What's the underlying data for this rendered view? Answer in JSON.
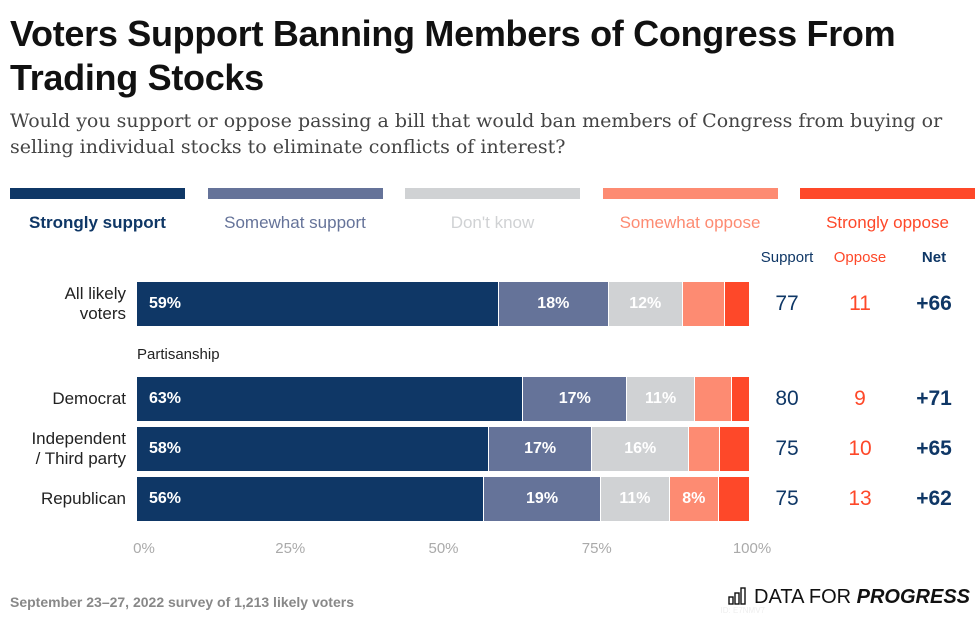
{
  "title": "Voters Support Banning Members of Congress From Trading Stocks",
  "subtitle": "Would you support or oppose passing a bill that would ban members of Congress from buying or selling individual stocks to eliminate conflicts of interest?",
  "colors": {
    "strongly_support": "#0f3766",
    "somewhat_support": "#657399",
    "dont_know": "#d0d2d4",
    "somewhat_oppose": "#fd8b72",
    "strongly_oppose": "#fe4829"
  },
  "columns": {
    "support": "Support",
    "oppose": "Oppose",
    "net": "Net"
  },
  "group_label": "Partisanship",
  "footer": "September 23–27, 2022 survey of 1,213 likely voters",
  "logo": {
    "text_light": "DATA FOR",
    "text_bold": "PROGRESS",
    "id": "ID: E7NMV7"
  },
  "chart_data": {
    "type": "bar",
    "orientation": "horizontal-stacked",
    "title": "Voters Support Banning Members of Congress From Trading Stocks",
    "xlim": [
      0,
      100
    ],
    "x_ticks": [
      "0%",
      "25%",
      "50%",
      "75%",
      "100%"
    ],
    "legend_placement": "top",
    "series": [
      {
        "name": "Strongly support",
        "values": [
          59,
          63,
          58,
          56
        ],
        "labels": [
          "59%",
          "63%",
          "58%",
          "56%"
        ]
      },
      {
        "name": "Somewhat support",
        "values": [
          18,
          17,
          17,
          19
        ],
        "labels": [
          "18%",
          "17%",
          "17%",
          "19%"
        ]
      },
      {
        "name": "Don't know",
        "values": [
          12,
          11,
          16,
          11
        ],
        "labels": [
          "12%",
          "11%",
          "16%",
          "11%"
        ]
      },
      {
        "name": "Somewhat oppose",
        "values": [
          7,
          6,
          5,
          8
        ],
        "labels": [
          "",
          "",
          "",
          "8%"
        ]
      },
      {
        "name": "Strongly oppose",
        "values": [
          4,
          3,
          5,
          5
        ],
        "labels": [
          "",
          "",
          "",
          ""
        ]
      }
    ],
    "categories": [
      {
        "label": "All likely voters",
        "lines": [
          "All likely",
          "voters"
        ],
        "support": "77",
        "oppose": "11",
        "net": "+66"
      },
      {
        "label": "Democrat",
        "lines": [
          "Democrat"
        ],
        "support": "80",
        "oppose": "9",
        "net": "+71"
      },
      {
        "label": "Independent / Third party",
        "lines": [
          "Independent",
          "/ Third party"
        ],
        "support": "75",
        "oppose": "10",
        "net": "+65"
      },
      {
        "label": "Republican",
        "lines": [
          "Republican"
        ],
        "support": "75",
        "oppose": "13",
        "net": "+62"
      }
    ]
  }
}
